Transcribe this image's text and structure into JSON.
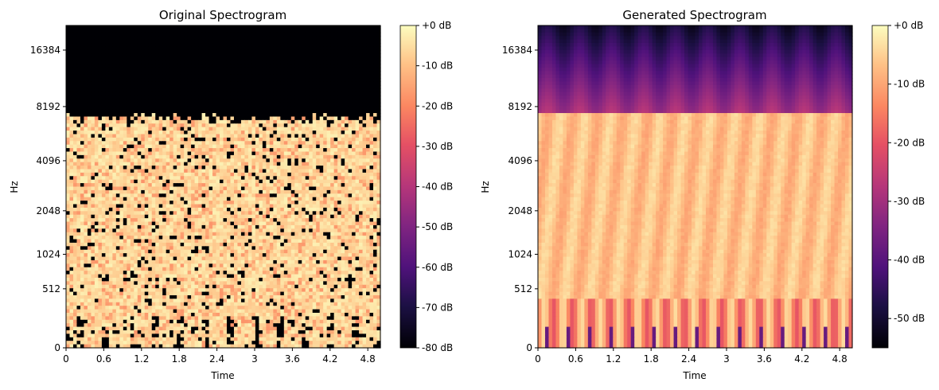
{
  "chart_data": [
    {
      "type": "heatmap",
      "title": "Original Spectrogram",
      "xlabel": "Time",
      "ylabel": "Hz",
      "xlim": [
        0,
        5.0
      ],
      "x_ticks": [
        "0",
        "0.6",
        "1.2",
        "1.8",
        "2.4",
        "3",
        "3.6",
        "4.2",
        "4.8"
      ],
      "y_ticks": [
        "0",
        "512",
        "1024",
        "2048",
        "4096",
        "8192",
        "16384"
      ],
      "colorbar": {
        "range_db": [
          -80,
          0
        ],
        "ticks": [
          "+0 dB",
          "-10 dB",
          "-20 dB",
          "-30 dB",
          "-40 dB",
          "-50 dB",
          "-60 dB",
          "-70 dB",
          "-80 dB"
        ]
      },
      "colormap": "magma",
      "content_summary": {
        "energy_cutoff_hz": 7000,
        "above_cutoff_db": -80,
        "below_cutoff_typical_db": -8
      }
    },
    {
      "type": "heatmap",
      "title": "Generated Spectrogram",
      "xlabel": "Time",
      "ylabel": "Hz",
      "xlim": [
        0,
        5.0
      ],
      "x_ticks": [
        "0",
        "0.6",
        "1.2",
        "1.8",
        "2.4",
        "3",
        "3.6",
        "4.2",
        "4.8"
      ],
      "y_ticks": [
        "0",
        "512",
        "1024",
        "2048",
        "4096",
        "8192",
        "16384"
      ],
      "colorbar": {
        "range_db": [
          -55,
          0
        ],
        "ticks": [
          "+0 dB",
          "-10 dB",
          "-20 dB",
          "-30 dB",
          "-40 dB",
          "-50 dB"
        ]
      },
      "colormap": "magma",
      "content_summary": {
        "energy_cutoff_hz": 7000,
        "above_cutoff_db": -42,
        "below_cutoff_typical_db": -5
      }
    }
  ],
  "colors": {
    "magma_low": "#000004",
    "magma_high": "#fcfdbf"
  }
}
